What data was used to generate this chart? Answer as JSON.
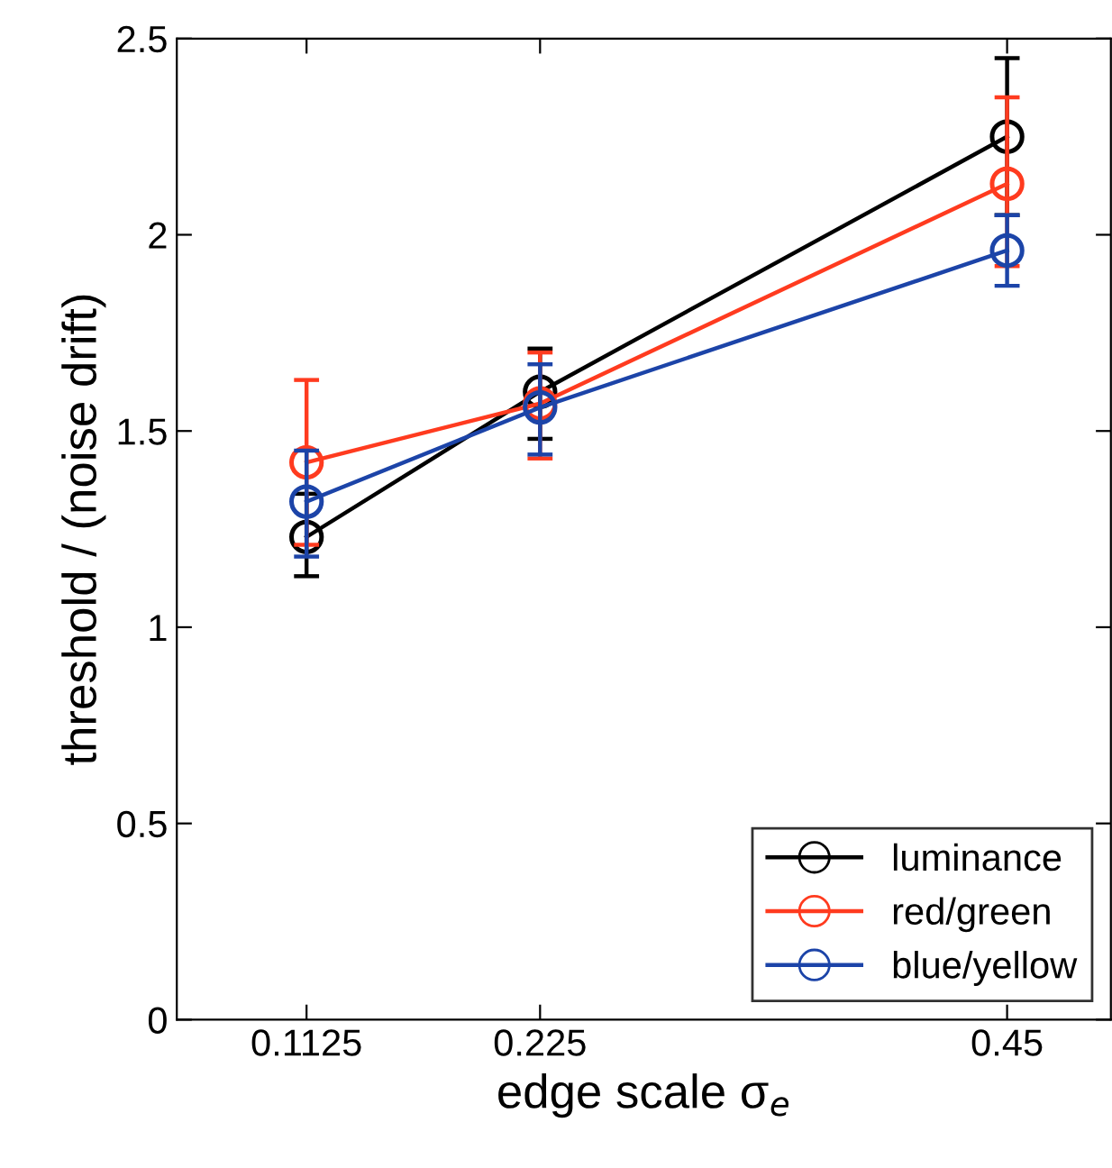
{
  "chart_data": {
    "type": "line",
    "xlabel": "edge scale σ$_{e}$",
    "ylabel": "threshold / (noise drift)",
    "x": [
      0.1125,
      0.225,
      0.45
    ],
    "series": [
      {
        "name": "luminance",
        "color": "#000000",
        "values": [
          1.23,
          1.6,
          2.25
        ],
        "errors": [
          [
            1.13,
            1.34
          ],
          [
            1.48,
            1.71
          ],
          [
            2.05,
            2.45
          ]
        ]
      },
      {
        "name": "red/green",
        "color": "#ff3b1f",
        "values": [
          1.42,
          1.57,
          2.13
        ],
        "errors": [
          [
            1.21,
            1.63
          ],
          [
            1.43,
            1.7
          ],
          [
            1.92,
            2.35
          ]
        ]
      },
      {
        "name": "blue/yellow",
        "color": "#1c44a8",
        "values": [
          1.32,
          1.56,
          1.96
        ],
        "errors": [
          [
            1.18,
            1.45
          ],
          [
            1.44,
            1.67
          ],
          [
            1.87,
            2.05
          ]
        ]
      }
    ],
    "xlim": [
      0.05,
      0.5
    ],
    "ylim": [
      0,
      2.5
    ],
    "xticks": [
      0.1125,
      0.225,
      0.45
    ],
    "yticks": [
      0,
      0.5,
      1,
      1.5,
      2,
      2.5
    ],
    "marker": "circle",
    "line_style": "solid",
    "legend": "bottom right",
    "grid": false
  }
}
